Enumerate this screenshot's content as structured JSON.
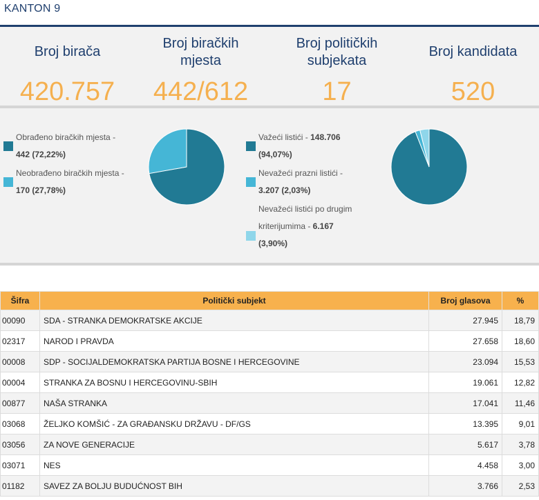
{
  "header": {
    "title": "KANTON 9"
  },
  "stats": [
    {
      "label_lines": [
        "Broj birača"
      ],
      "value": "420.757"
    },
    {
      "label_lines": [
        "Broj biračkih",
        "mjesta"
      ],
      "value": "442/612"
    },
    {
      "label_lines": [
        "Broj političkih",
        "subjekata"
      ],
      "value": "17"
    },
    {
      "label_lines": [
        "Broj kandidata"
      ],
      "value": "520"
    }
  ],
  "polling_stations_chart": {
    "legend": [
      {
        "line1": "Obrađeno biračkih mjesta -",
        "line2": "442 (72,22%)",
        "color": "#217a94"
      },
      {
        "line1": "Neobrađeno biračkih mjesta -",
        "line2": "170 (27,78%)",
        "color": "#45b6d6"
      }
    ],
    "slices": [
      {
        "value": 72.22,
        "color": "#217a94"
      },
      {
        "value": 27.78,
        "color": "#45b6d6"
      }
    ]
  },
  "ballots_chart": {
    "legend": [
      {
        "line1_text": "Važeći listići - ",
        "line1_bold": "148.706",
        "line2": "(94,07%)",
        "color": "#217a94"
      },
      {
        "line1_text": "Nevažeći prazni listići -",
        "line1_bold": "",
        "line2": "3.207 (2,03%)",
        "color": "#45b6d6"
      },
      {
        "line0": "Nevažeći listići po drugim",
        "line1_text": "kriterijumima - ",
        "line1_bold": "6.167",
        "line2": "(3,90%)",
        "color": "#8fd6ea"
      }
    ],
    "slices": [
      {
        "value": 94.07,
        "color": "#217a94"
      },
      {
        "value": 2.03,
        "color": "#45b6d6"
      },
      {
        "value": 3.9,
        "color": "#8fd6ea"
      }
    ]
  },
  "table": {
    "headers": {
      "code": "Šifra",
      "party": "Politički subjekt",
      "votes": "Broj glasova",
      "pct": "%"
    },
    "rows": [
      {
        "code": "00090",
        "party": "SDA - STRANKA DEMOKRATSKE AKCIJE",
        "votes": "27.945",
        "pct": "18,79"
      },
      {
        "code": "02317",
        "party": "NAROD I PRAVDA",
        "votes": "27.658",
        "pct": "18,60"
      },
      {
        "code": "00008",
        "party": "SDP - SOCIJALDEMOKRATSKA PARTIJA BOSNE I HERCEGOVINE",
        "votes": "23.094",
        "pct": "15,53"
      },
      {
        "code": "00004",
        "party": "STRANKA ZA BOSNU I HERCEGOVINU-SBIH",
        "votes": "19.061",
        "pct": "12,82"
      },
      {
        "code": "00877",
        "party": "NAŠA STRANKA",
        "votes": "17.041",
        "pct": "11,46"
      },
      {
        "code": "03068",
        "party": "ŽELJKO KOMŠIĆ - ZA GRAĐANSKU DRŽAVU - DF/GS",
        "votes": "13.395",
        "pct": "9,01"
      },
      {
        "code": "03056",
        "party": "ZA NOVE GENERACIJE",
        "votes": "5.617",
        "pct": "3,78"
      },
      {
        "code": "03071",
        "party": "NES",
        "votes": "4.458",
        "pct": "3,00"
      },
      {
        "code": "01182",
        "party": "SAVEZ ZA BOLJU BUDUĆNOST BIH",
        "votes": "3.766",
        "pct": "2,53"
      }
    ]
  }
}
